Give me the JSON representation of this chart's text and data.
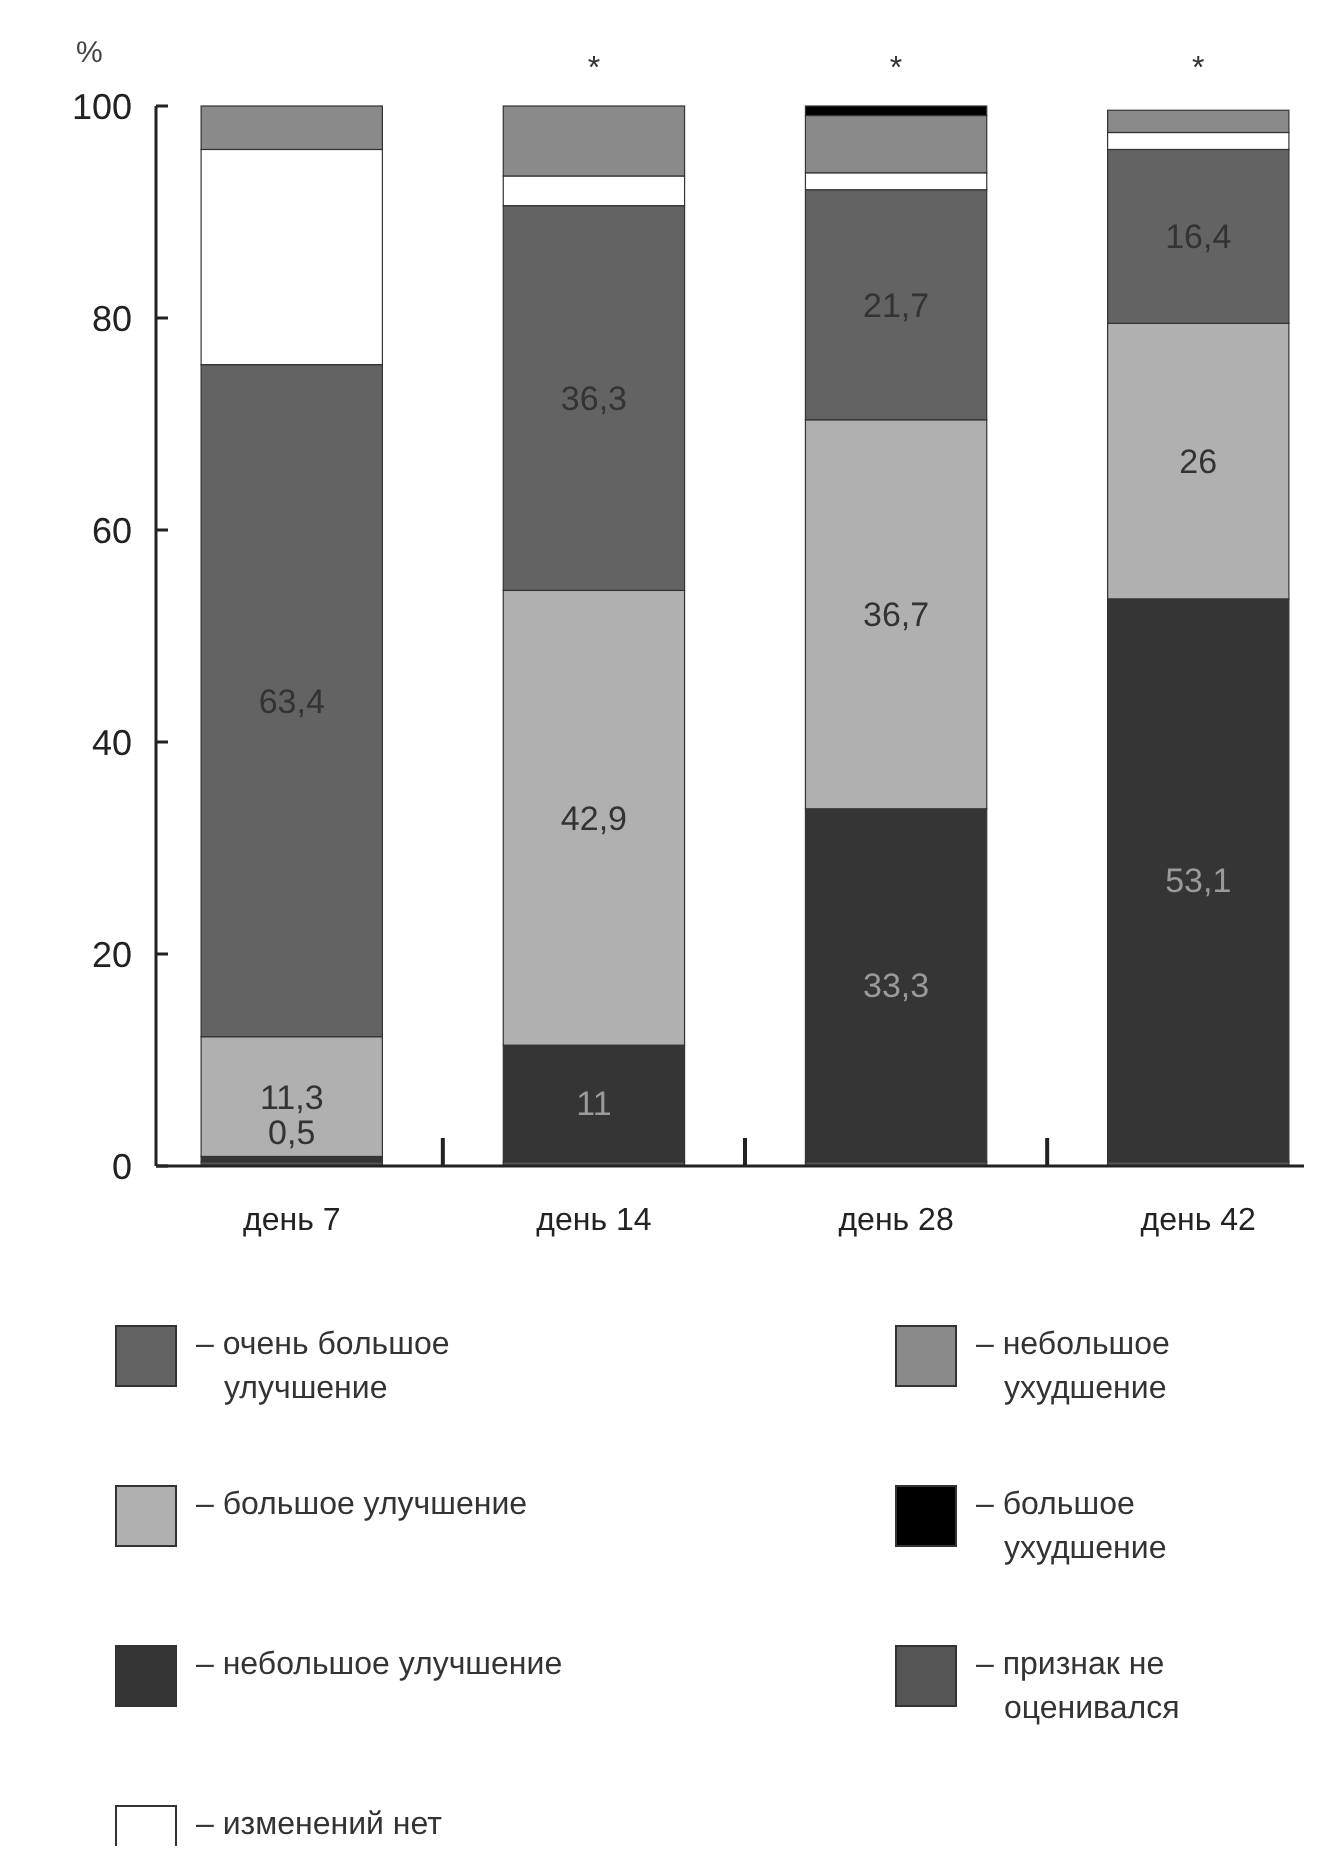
{
  "chart_data": {
    "type": "bar",
    "stacked": true,
    "ylabel": "%",
    "categories": [
      "день 7",
      "день 14",
      "день 28",
      "день 42"
    ],
    "ylim": [
      0,
      100
    ],
    "yticks": [
      0,
      20,
      40,
      60,
      80,
      100
    ],
    "grid": false,
    "legend": "bottom",
    "series": [
      {
        "name": "– признак не оценивался",
        "color": "#555555",
        "values": [
          0.4,
          0.4,
          0.4,
          0.4
        ]
      },
      {
        "name": "– небольшое улучшение",
        "color": "#353535",
        "values": [
          0.5,
          11,
          33.3,
          53.1
        ],
        "value_labels": [
          "0,5",
          "11",
          "33,3",
          "53,1"
        ]
      },
      {
        "name": "– большое улучшение",
        "color": "#b0b0b0",
        "values": [
          11.3,
          42.9,
          36.7,
          26
        ],
        "value_labels": [
          "11,3",
          "42,9",
          "36,7",
          "26"
        ]
      },
      {
        "name": "– очень большое улучшение",
        "color": "#636363",
        "values": [
          63.4,
          36.3,
          21.7,
          16.4
        ],
        "value_labels": [
          "63,4",
          "36,3",
          "21,7",
          "16,4"
        ]
      },
      {
        "name": "– изменений нет",
        "color": "#ffffff",
        "values": [
          20.3,
          2.8,
          1.6,
          1.6
        ]
      },
      {
        "name": "– небольшое ухудшение",
        "color": "#8a8a8a",
        "values": [
          4.1,
          6.6,
          5.4,
          2.1
        ]
      },
      {
        "name": "– большое ухудшение",
        "color": "#000000",
        "values": [
          0,
          0,
          0.9,
          0
        ]
      }
    ],
    "annotations": [
      {
        "text": "*",
        "x": "день 14",
        "y": 100
      },
      {
        "text": "*",
        "x": "день 28",
        "y": 100
      },
      {
        "text": "*",
        "x": "день 42",
        "y": 100
      }
    ]
  }
}
